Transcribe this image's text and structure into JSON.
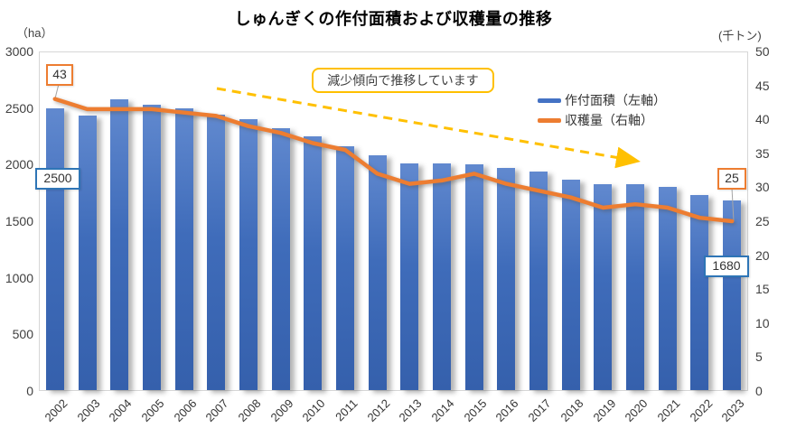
{
  "title": "しゅんぎくの作付面積および収穫量の推移",
  "left_axis_unit": "（ha）",
  "right_axis_unit": "(千トン)",
  "annotation": "減少傾向で推移しています",
  "callouts": {
    "harvest_first": "43",
    "area_first": "2500",
    "harvest_last": "25",
    "area_last": "1680"
  },
  "colors": {
    "bar_blue": "#4472C4",
    "line_orange": "#ED7D31",
    "arrow_gold": "#FFC000",
    "callout_blue_border": "#2E75B6",
    "plot_border": "#D6D6D6"
  },
  "chart_data": {
    "type": "bar+line combo, dual axis",
    "categories": [
      "2002",
      "2003",
      "2004",
      "2005",
      "2006",
      "2007",
      "2008",
      "2009",
      "2010",
      "2011",
      "2012",
      "2013",
      "2014",
      "2015",
      "2016",
      "2017",
      "2018",
      "2019",
      "2020",
      "2021",
      "2022",
      "2023"
    ],
    "series": [
      {
        "name": "作付面積（左軸）",
        "type": "bar",
        "axis": "left",
        "unit": "ha",
        "color": "#4472C4",
        "values": [
          2500,
          2430,
          2580,
          2530,
          2500,
          2440,
          2400,
          2320,
          2250,
          2160,
          2080,
          2010,
          2010,
          2000,
          1970,
          1940,
          1870,
          1830,
          1830,
          1800,
          1730,
          1680
        ]
      },
      {
        "name": "収穫量（右軸）",
        "type": "line",
        "axis": "right",
        "unit": "千トン",
        "color": "#ED7D31",
        "values": [
          43,
          41.5,
          41.5,
          41.5,
          41,
          40.5,
          39,
          38,
          36.5,
          35.5,
          32,
          30.5,
          31,
          32,
          30.5,
          29.5,
          28.5,
          27,
          27.5,
          27,
          25.5,
          25
        ]
      }
    ],
    "left_axis": {
      "min": 0,
      "max": 3000,
      "step": 500
    },
    "right_axis": {
      "min": 0,
      "max": 50,
      "step": 5
    },
    "grid": "off",
    "legend_position": "inside top-right",
    "annotations": [
      "減少傾向で推移しています",
      "dashed gold arrow sloping down from 2007 to 2020 area"
    ]
  }
}
